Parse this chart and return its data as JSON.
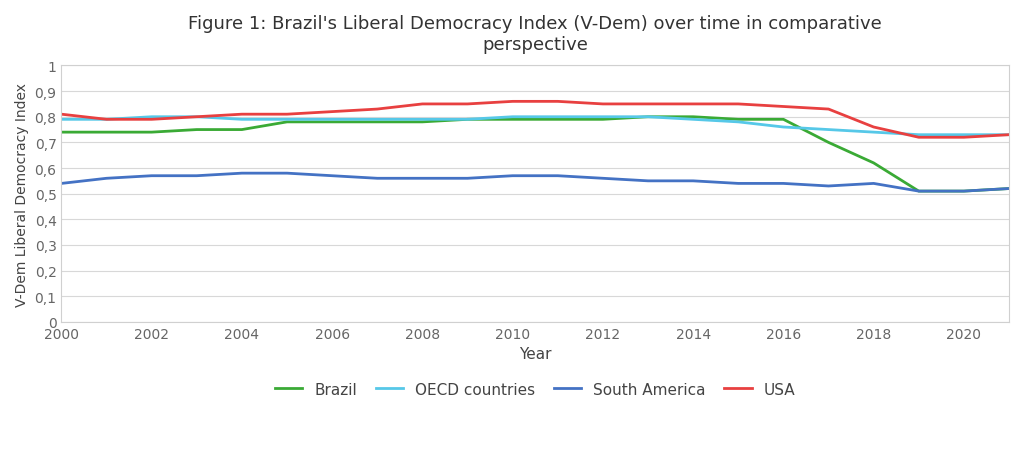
{
  "title": "Figure 1: Brazil's Liberal Democracy Index (V-Dem) over time in comparative\nperspective",
  "xlabel": "Year",
  "ylabel": "V-Dem Liberal Democracy Index",
  "years": [
    2000,
    2001,
    2002,
    2003,
    2004,
    2005,
    2006,
    2007,
    2008,
    2009,
    2010,
    2011,
    2012,
    2013,
    2014,
    2015,
    2016,
    2017,
    2018,
    2019,
    2020,
    2021
  ],
  "brazil": [
    0.74,
    0.74,
    0.74,
    0.75,
    0.75,
    0.78,
    0.78,
    0.78,
    0.78,
    0.79,
    0.79,
    0.79,
    0.79,
    0.8,
    0.8,
    0.79,
    0.79,
    0.7,
    0.62,
    0.51,
    0.51,
    0.52
  ],
  "oecd": [
    0.79,
    0.79,
    0.8,
    0.8,
    0.79,
    0.79,
    0.79,
    0.79,
    0.79,
    0.79,
    0.8,
    0.8,
    0.8,
    0.8,
    0.79,
    0.78,
    0.76,
    0.75,
    0.74,
    0.73,
    0.73,
    0.73
  ],
  "south_america": [
    0.54,
    0.56,
    0.57,
    0.57,
    0.58,
    0.58,
    0.57,
    0.56,
    0.56,
    0.56,
    0.57,
    0.57,
    0.56,
    0.55,
    0.55,
    0.54,
    0.54,
    0.53,
    0.54,
    0.51,
    0.51,
    0.52
  ],
  "usa": [
    0.81,
    0.79,
    0.79,
    0.8,
    0.81,
    0.81,
    0.82,
    0.83,
    0.85,
    0.85,
    0.86,
    0.86,
    0.85,
    0.85,
    0.85,
    0.85,
    0.84,
    0.83,
    0.76,
    0.72,
    0.72,
    0.73
  ],
  "brazil_color": "#3aaa35",
  "oecd_color": "#56c8e8",
  "south_america_color": "#4472c4",
  "usa_color": "#e84040",
  "background_color": "#ffffff",
  "plot_bg_color": "#ffffff",
  "border_color": "#d0d0d0",
  "grid_color": "#d8d8d8",
  "ylim": [
    0,
    1.0
  ],
  "yticks": [
    0,
    0.1,
    0.2,
    0.3,
    0.4,
    0.5,
    0.6,
    0.7,
    0.8,
    0.9,
    1.0
  ],
  "ytick_labels": [
    "0",
    "0,1",
    "0,2",
    "0,3",
    "0,4",
    "0,5",
    "0,6",
    "0,7",
    "0,8",
    "0,9",
    "1"
  ],
  "xticks": [
    2000,
    2002,
    2004,
    2006,
    2008,
    2010,
    2012,
    2014,
    2016,
    2018,
    2020
  ],
  "linewidth": 2.0,
  "tick_color": "#666666",
  "label_color": "#444444",
  "title_color": "#333333"
}
